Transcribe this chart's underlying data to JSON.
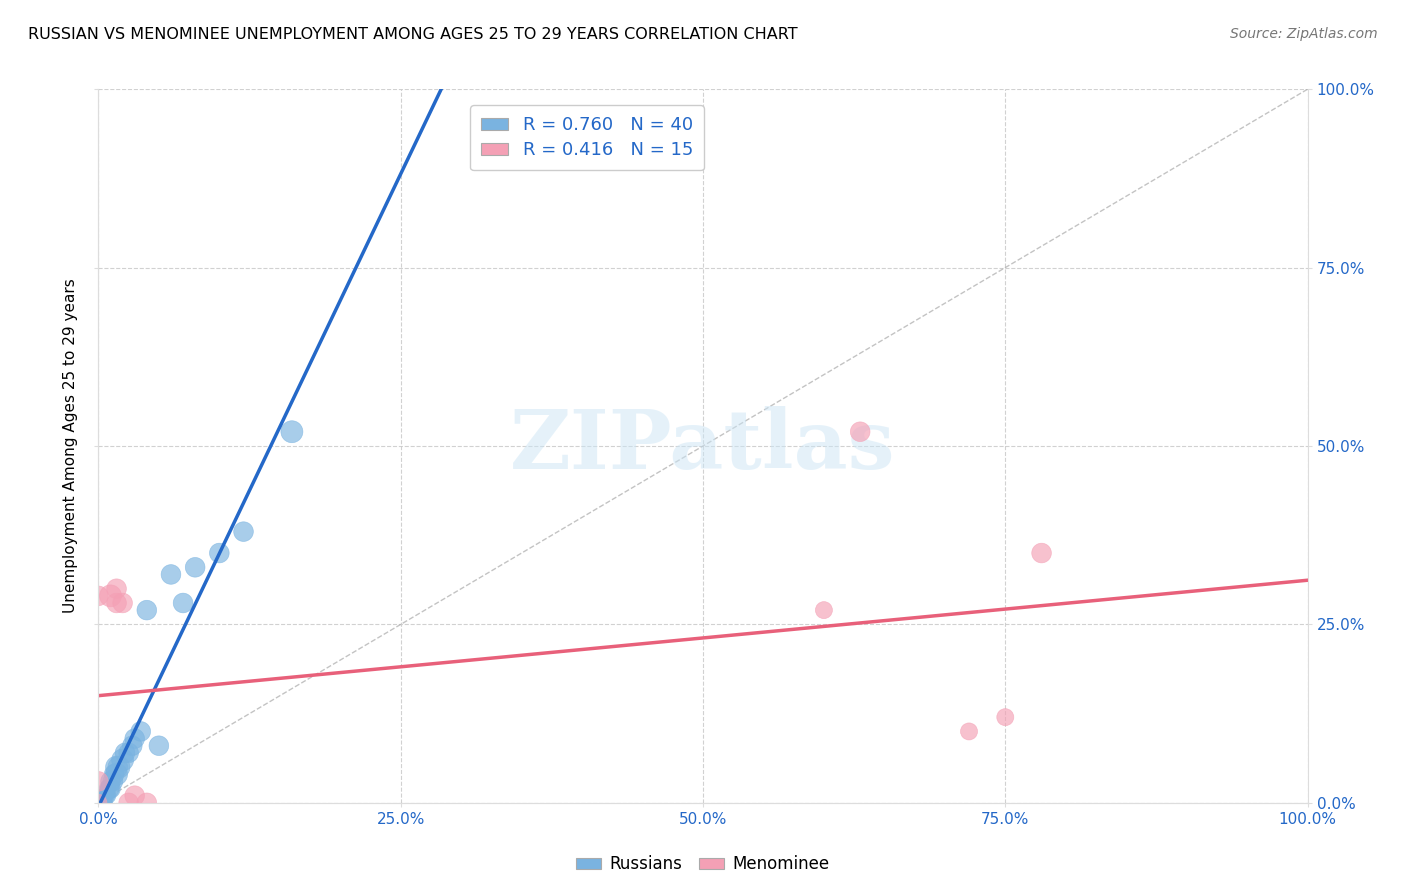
{
  "title": "RUSSIAN VS MENOMINEE UNEMPLOYMENT AMONG AGES 25 TO 29 YEARS CORRELATION CHART",
  "source": "Source: ZipAtlas.com",
  "ylabel": "Unemployment Among Ages 25 to 29 years",
  "xlim": [
    0,
    1.0
  ],
  "ylim": [
    0,
    1.0
  ],
  "xticks": [
    0.0,
    0.25,
    0.5,
    0.75,
    1.0
  ],
  "yticks": [
    0.0,
    0.25,
    0.5,
    0.75,
    1.0
  ],
  "xticklabels": [
    "0.0%",
    "25.0%",
    "50.0%",
    "75.0%",
    "100.0%"
  ],
  "right_yticklabels": [
    "0.0%",
    "25.0%",
    "50.0%",
    "75.0%",
    "100.0%"
  ],
  "russian_color": "#7ab3e0",
  "menominee_color": "#f4a0b5",
  "russian_line_color": "#2468c8",
  "menominee_line_color": "#e8607a",
  "diagonal_color": "#aaaaaa",
  "R_russian": 0.76,
  "N_russian": 40,
  "R_menominee": 0.416,
  "N_menominee": 15,
  "legend_text_color": "#2468c8",
  "watermark_text": "ZIPatlas",
  "russians_x": [
    0.0,
    0.0,
    0.0,
    0.0,
    0.0,
    0.002,
    0.002,
    0.003,
    0.003,
    0.004,
    0.004,
    0.005,
    0.005,
    0.005,
    0.006,
    0.007,
    0.008,
    0.008,
    0.009,
    0.01,
    0.01,
    0.012,
    0.013,
    0.015,
    0.015,
    0.017,
    0.02,
    0.022,
    0.025,
    0.028,
    0.03,
    0.035,
    0.04,
    0.05,
    0.06,
    0.07,
    0.08,
    0.1,
    0.12,
    0.16
  ],
  "russians_y": [
    0.0,
    0.0,
    0.0,
    0.0,
    0.0,
    0.0,
    0.0,
    0.0,
    0.0,
    0.0,
    0.0,
    0.0,
    0.0,
    0.01,
    0.01,
    0.01,
    0.01,
    0.02,
    0.02,
    0.02,
    0.03,
    0.03,
    0.04,
    0.04,
    0.05,
    0.05,
    0.06,
    0.07,
    0.07,
    0.08,
    0.09,
    0.1,
    0.27,
    0.08,
    0.32,
    0.28,
    0.33,
    0.35,
    0.38,
    0.52
  ],
  "russians_size": [
    50,
    50,
    50,
    50,
    50,
    50,
    50,
    50,
    50,
    50,
    50,
    50,
    50,
    50,
    50,
    50,
    50,
    50,
    80,
    80,
    80,
    80,
    80,
    100,
    100,
    100,
    100,
    80,
    80,
    80,
    80,
    80,
    80,
    80,
    80,
    80,
    80,
    80,
    80,
    100
  ],
  "menominee_x": [
    0.0,
    0.0,
    0.0,
    0.01,
    0.015,
    0.015,
    0.02,
    0.025,
    0.03,
    0.04,
    0.6,
    0.63,
    0.72,
    0.75,
    0.78
  ],
  "menominee_y": [
    0.0,
    0.03,
    0.29,
    0.29,
    0.28,
    0.3,
    0.28,
    0.0,
    0.01,
    0.0,
    0.27,
    0.52,
    0.1,
    0.12,
    0.35
  ],
  "menominee_size": [
    60,
    80,
    80,
    100,
    80,
    80,
    80,
    80,
    80,
    80,
    60,
    80,
    60,
    60,
    80
  ]
}
